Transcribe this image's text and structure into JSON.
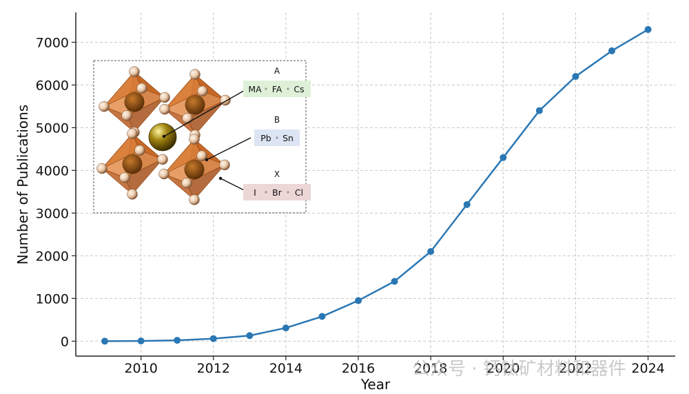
{
  "chart_data": {
    "type": "line",
    "title": "",
    "xlabel": "Year",
    "ylabel": "Number of Publications",
    "x": [
      2009,
      2010,
      2011,
      2012,
      2013,
      2014,
      2015,
      2016,
      2017,
      2018,
      2019,
      2020,
      2021,
      2022,
      2023,
      2024
    ],
    "series": [
      {
        "values": [
          0,
          5,
          20,
          60,
          130,
          310,
          580,
          950,
          1400,
          2100,
          3200,
          4300,
          5400,
          6200,
          6800,
          7300
        ],
        "color": "#2a77b4"
      }
    ],
    "xticks": [
      2010,
      2012,
      2014,
      2016,
      2018,
      2020,
      2022,
      2024
    ],
    "yticks": [
      0,
      1000,
      2000,
      3000,
      4000,
      5000,
      6000,
      7000
    ],
    "xlim": [
      2008.2,
      2024.75
    ],
    "ylim": [
      -350,
      7700
    ],
    "grid": true,
    "grid_style": "dashed",
    "marker": "circle"
  },
  "inset": {
    "groups": [
      {
        "site": "A",
        "items": [
          "MA",
          "FA",
          "Cs"
        ],
        "color": "#dff0d8"
      },
      {
        "site": "B",
        "items": [
          "Pb",
          "Sn"
        ],
        "color": "#dde4f3"
      },
      {
        "site": "X",
        "items": [
          "I",
          "Br",
          "Cl"
        ],
        "color": "#ecd6d6"
      }
    ],
    "octahedron_color": "#cc6a22",
    "a_site_color": "#a08410",
    "x_site_color": "#e8c6a6"
  },
  "watermark": "公众号 · 钙钛矿材料和器件"
}
